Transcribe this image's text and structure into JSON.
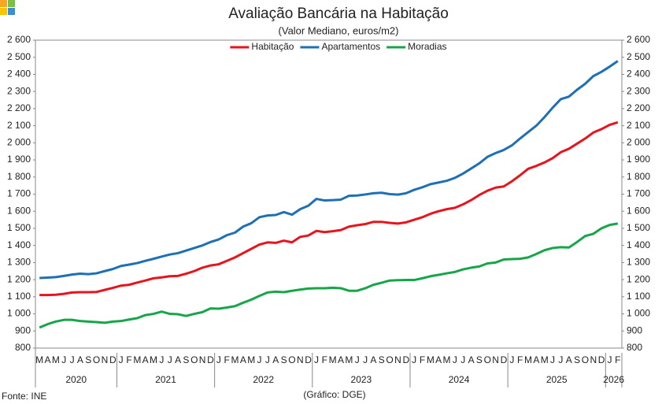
{
  "chart_data": {
    "type": "line",
    "title": "Avaliação Bancária na Habitação",
    "subtitle": "(Valor Mediano, euros/m2)",
    "source": "Fonte: INE",
    "credit": "(Gráfico: DGE)",
    "category_groups": [
      {
        "label": "2020",
        "categories": [
          "M",
          "A",
          "M",
          "J",
          "J",
          "A",
          "S",
          "O",
          "N",
          "D"
        ]
      },
      {
        "label": "2021",
        "categories": [
          "J",
          "F",
          "M",
          "A",
          "M",
          "J",
          "J",
          "A",
          "S",
          "O",
          "N",
          "D"
        ]
      },
      {
        "label": "2022",
        "categories": [
          "J",
          "F",
          "M",
          "A",
          "M",
          "J",
          "J",
          "A",
          "S",
          "O",
          "N",
          "D"
        ]
      },
      {
        "label": "2023",
        "categories": [
          "J",
          "F",
          "M",
          "A",
          "M",
          "J",
          "J",
          "A",
          "S",
          "O",
          "N",
          "D"
        ]
      },
      {
        "label": "2024",
        "categories": [
          "J",
          "F",
          "M",
          "A",
          "M",
          "J",
          "J",
          "A",
          "S",
          "O",
          "N",
          "D"
        ]
      },
      {
        "label": "2025",
        "categories": [
          "J",
          "F",
          "M",
          "A",
          "M",
          "J",
          "J",
          "A",
          "S",
          "O",
          "N",
          "D"
        ]
      },
      {
        "label": "2026",
        "categories": [
          "J",
          "F"
        ]
      }
    ],
    "series": [
      {
        "name": "Habitação",
        "color": "#e8141b",
        "values": [
          1110,
          1110,
          1112,
          1117,
          1125,
          1127,
          1127,
          1128,
          1140,
          1152,
          1165,
          1170,
          1183,
          1195,
          1208,
          1213,
          1220,
          1222,
          1235,
          1250,
          1270,
          1283,
          1290,
          1310,
          1330,
          1355,
          1380,
          1405,
          1418,
          1415,
          1428,
          1418,
          1450,
          1458,
          1485,
          1478,
          1483,
          1490,
          1510,
          1518,
          1525,
          1538,
          1538,
          1532,
          1528,
          1535,
          1550,
          1565,
          1585,
          1600,
          1612,
          1620,
          1640,
          1665,
          1695,
          1720,
          1738,
          1745,
          1775,
          1810,
          1848,
          1865,
          1885,
          1910,
          1945,
          1965,
          1995,
          2025,
          2060,
          2080,
          2105,
          2120
        ]
      },
      {
        "name": "Apartamentos",
        "color": "#1f6fb5",
        "values": [
          1210,
          1212,
          1215,
          1222,
          1230,
          1235,
          1232,
          1237,
          1250,
          1262,
          1280,
          1288,
          1297,
          1310,
          1322,
          1335,
          1347,
          1355,
          1370,
          1385,
          1400,
          1420,
          1435,
          1460,
          1475,
          1510,
          1530,
          1565,
          1575,
          1578,
          1595,
          1580,
          1612,
          1632,
          1672,
          1663,
          1665,
          1668,
          1690,
          1692,
          1698,
          1705,
          1708,
          1700,
          1697,
          1705,
          1725,
          1740,
          1758,
          1768,
          1778,
          1795,
          1820,
          1850,
          1880,
          1918,
          1940,
          1958,
          1985,
          2025,
          2063,
          2100,
          2150,
          2205,
          2255,
          2270,
          2310,
          2345,
          2390,
          2415,
          2445,
          2478
        ]
      },
      {
        "name": "Moradias",
        "color": "#17a54a",
        "values": [
          920,
          940,
          955,
          965,
          965,
          958,
          955,
          952,
          948,
          955,
          958,
          967,
          975,
          993,
          1000,
          1013,
          1000,
          998,
          988,
          1000,
          1010,
          1032,
          1030,
          1037,
          1045,
          1065,
          1083,
          1105,
          1125,
          1130,
          1127,
          1135,
          1142,
          1148,
          1150,
          1150,
          1153,
          1150,
          1135,
          1135,
          1150,
          1170,
          1182,
          1195,
          1197,
          1198,
          1198,
          1208,
          1220,
          1228,
          1237,
          1245,
          1260,
          1270,
          1277,
          1295,
          1300,
          1318,
          1320,
          1322,
          1330,
          1350,
          1372,
          1385,
          1390,
          1388,
          1420,
          1455,
          1468,
          1500,
          1520,
          1528
        ]
      }
    ],
    "ylim": [
      800,
      2600
    ],
    "yticks": [
      {
        "value": 800,
        "label": "800"
      },
      900,
      {
        "value": 1000,
        "label": "1 000"
      },
      {
        "value": 1100,
        "label": "1 100"
      },
      {
        "value": 1200,
        "label": "1 200"
      },
      {
        "value": 1300,
        "label": "1 300"
      },
      {
        "value": 1400,
        "label": "1 400"
      },
      {
        "value": 1500,
        "label": "1 500"
      },
      {
        "value": 1600,
        "label": "1 600"
      },
      {
        "value": 1700,
        "label": "1 700"
      },
      {
        "value": 1800,
        "label": "1 800"
      },
      {
        "value": 1900,
        "label": "1 900"
      },
      {
        "value": 2000,
        "label": "2 000"
      },
      {
        "value": 2100,
        "label": "2 100"
      },
      {
        "value": 2200,
        "label": "2 200"
      },
      {
        "value": 2300,
        "label": "2 300"
      },
      {
        "value": 2400,
        "label": "2 400"
      },
      {
        "value": 2500,
        "label": "2 500"
      },
      {
        "value": 2600,
        "label": "2 600"
      }
    ],
    "y2lim": [
      800,
      2600
    ],
    "y2ticks": [
      {
        "value": 800,
        "label": "800"
      },
      900,
      {
        "value": 1000,
        "label": "1 000"
      },
      {
        "value": 1100,
        "label": "1 100"
      },
      {
        "value": 1200,
        "label": "1 200"
      },
      {
        "value": 1300,
        "label": "1 300"
      },
      {
        "value": 1400,
        "label": "1 400"
      },
      {
        "value": 1500,
        "label": "1 500"
      },
      {
        "value": 1600,
        "label": "1 600"
      },
      {
        "value": 1700,
        "label": "1 700"
      },
      {
        "value": 1800,
        "label": "1 800"
      },
      {
        "value": 1900,
        "label": "1 900"
      },
      {
        "value": 2000,
        "label": "2 000"
      },
      {
        "value": 2100,
        "label": "2 100"
      },
      {
        "value": 2200,
        "label": "2 200"
      },
      {
        "value": 2300,
        "label": "2 300"
      },
      {
        "value": 2400,
        "label": "2 400"
      },
      {
        "value": 2500,
        "label": "2 500"
      },
      {
        "value": 2600,
        "label": "2 600"
      }
    ],
    "legend": "top",
    "grid": false
  }
}
